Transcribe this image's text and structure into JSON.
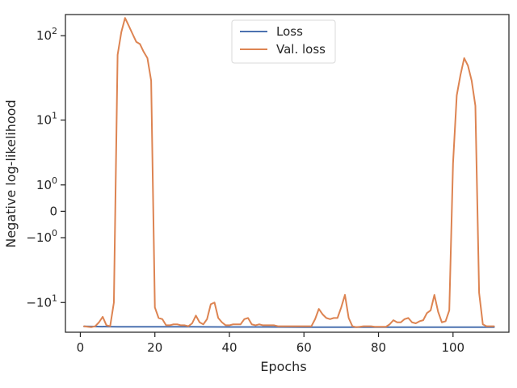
{
  "chart_data": {
    "type": "line",
    "xlabel": "Epochs",
    "ylabel": "Negative log-likelihood",
    "xlim": [
      -4,
      115
    ],
    "yscale": "symlog",
    "ylim": [
      -23,
      175
    ],
    "xticks": [
      0,
      20,
      40,
      60,
      80,
      100
    ],
    "xtick_labels": [
      "0",
      "20",
      "40",
      "60",
      "80",
      "100"
    ],
    "yticks": [
      100,
      10,
      1,
      0,
      -1,
      -10
    ],
    "ytick_labels": [
      "10^2",
      "10^1",
      "10^0",
      "0",
      "−10^0",
      "−10^1"
    ],
    "grid": false,
    "legend_position": "top-center",
    "colors": {
      "Loss": "#4c72b0",
      "Val. loss": "#dd8452"
    },
    "series": [
      {
        "name": "Loss",
        "x": [
          1,
          10,
          20,
          30,
          40,
          50,
          60,
          70,
          80,
          90,
          100,
          111
        ],
        "values": [
          -19.6,
          -19.8,
          -19.8,
          -19.8,
          -19.9,
          -19.9,
          -20.0,
          -20.0,
          -20.0,
          -20.0,
          -20.0,
          -20.0
        ]
      },
      {
        "name": "Val. loss",
        "x": [
          1,
          2,
          3,
          4,
          5,
          6,
          7,
          8,
          9,
          10,
          11,
          12,
          13,
          14,
          15,
          16,
          17,
          18,
          19,
          20,
          21,
          22,
          23,
          24,
          25,
          26,
          27,
          28,
          29,
          30,
          31,
          32,
          33,
          34,
          35,
          36,
          37,
          38,
          39,
          40,
          41,
          42,
          43,
          44,
          45,
          46,
          47,
          48,
          49,
          50,
          51,
          52,
          53,
          54,
          55,
          56,
          57,
          58,
          59,
          60,
          61,
          62,
          63,
          64,
          65,
          66,
          67,
          68,
          69,
          70,
          71,
          72,
          73,
          74,
          75,
          76,
          77,
          78,
          79,
          80,
          81,
          82,
          83,
          84,
          85,
          86,
          87,
          88,
          89,
          90,
          91,
          92,
          93,
          94,
          95,
          96,
          97,
          98,
          99,
          100,
          101,
          102,
          103,
          104,
          105,
          106,
          107,
          108,
          109,
          110,
          111
        ],
        "values": [
          -19.5,
          -19.8,
          -20.0,
          -19.5,
          -17.5,
          -15.0,
          -19.0,
          -19.5,
          -10.0,
          60,
          110,
          160,
          130,
          105,
          85,
          80,
          65,
          55,
          30,
          -11.5,
          -15.5,
          -16.0,
          -19.0,
          -19.0,
          -18.5,
          -18.5,
          -19.0,
          -19.0,
          -19.5,
          -18.0,
          -14.5,
          -17.5,
          -18.5,
          -16.0,
          -10.5,
          -10.0,
          -15.5,
          -17.5,
          -19.0,
          -19.0,
          -18.5,
          -18.5,
          -18.5,
          -16.0,
          -15.5,
          -18.5,
          -19.0,
          -18.5,
          -19.0,
          -19.0,
          -19.0,
          -19.0,
          -19.5,
          -19.5,
          -19.5,
          -19.5,
          -19.5,
          -19.5,
          -19.5,
          -19.5,
          -19.5,
          -19.5,
          -16.0,
          -12.0,
          -14.0,
          -15.5,
          -16.0,
          -15.5,
          -15.5,
          -11.5,
          -8.0,
          -15.5,
          -19.5,
          -20.0,
          -19.8,
          -19.5,
          -19.5,
          -19.5,
          -19.8,
          -19.8,
          -19.8,
          -19.8,
          -18.5,
          -16.5,
          -17.5,
          -17.5,
          -16.0,
          -15.5,
          -17.5,
          -18.0,
          -17.0,
          -16.5,
          -13.5,
          -12.5,
          -8.0,
          -13.0,
          -17.5,
          -17.0,
          -12.5,
          2.5,
          20,
          35,
          55,
          45,
          30,
          15,
          -7.5,
          -18.5,
          -19.5,
          -19.5,
          -19.5
        ]
      }
    ]
  }
}
